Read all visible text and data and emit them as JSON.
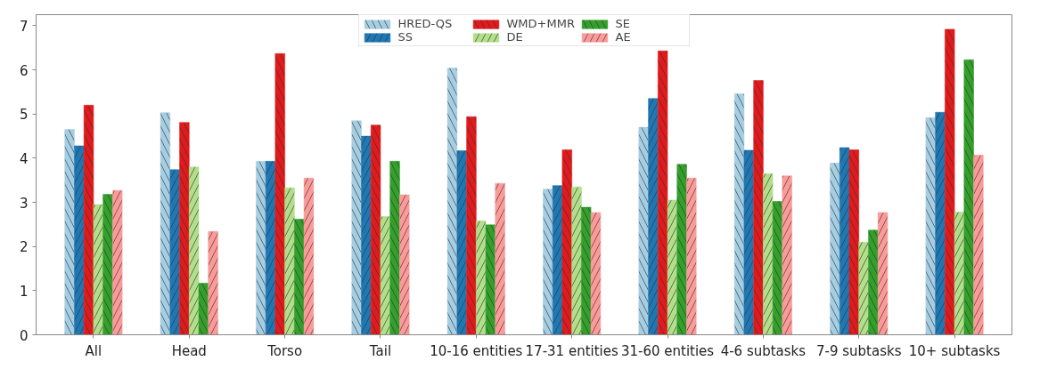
{
  "chart_data": {
    "type": "bar",
    "categories": [
      "All",
      "Head",
      "Torso",
      "Tail",
      "10-16 entities",
      "17-31 entities",
      "31-60 entities",
      "4-6 subtasks",
      "7-9 subtasks",
      "10+ subtasks"
    ],
    "series": [
      {
        "name": "HRED-QS",
        "color": "#a6cee3",
        "values": [
          4.65,
          5.03,
          3.93,
          4.85,
          6.04,
          3.3,
          4.7,
          5.46,
          3.89,
          4.92
        ]
      },
      {
        "name": "SS",
        "color": "#1f78b4",
        "values": [
          4.28,
          3.74,
          3.93,
          4.5,
          4.17,
          3.38,
          5.35,
          4.18,
          4.24,
          5.04
        ]
      },
      {
        "name": "WMD+MMR",
        "color": "#e31a1c",
        "values": [
          5.2,
          4.81,
          6.37,
          4.75,
          4.94,
          4.19,
          6.43,
          5.76,
          4.19,
          6.92
        ]
      },
      {
        "name": "DE",
        "color": "#b2df8a",
        "values": [
          2.95,
          3.8,
          3.33,
          2.68,
          2.58,
          3.35,
          3.05,
          3.65,
          2.1,
          2.78
        ]
      },
      {
        "name": "SE",
        "color": "#33a02c",
        "values": [
          3.18,
          1.17,
          2.62,
          3.93,
          2.49,
          2.89,
          3.86,
          3.02,
          2.37,
          6.23
        ]
      },
      {
        "name": "AE",
        "color": "#fb9a99",
        "values": [
          3.27,
          2.34,
          3.55,
          3.17,
          3.43,
          2.77,
          3.55,
          3.6,
          2.77,
          4.07
        ]
      }
    ],
    "ylim": [
      0,
      7.25
    ],
    "yticks": [
      0,
      1,
      2,
      3,
      4,
      5,
      6,
      7
    ],
    "grid": false,
    "legend": "top"
  }
}
